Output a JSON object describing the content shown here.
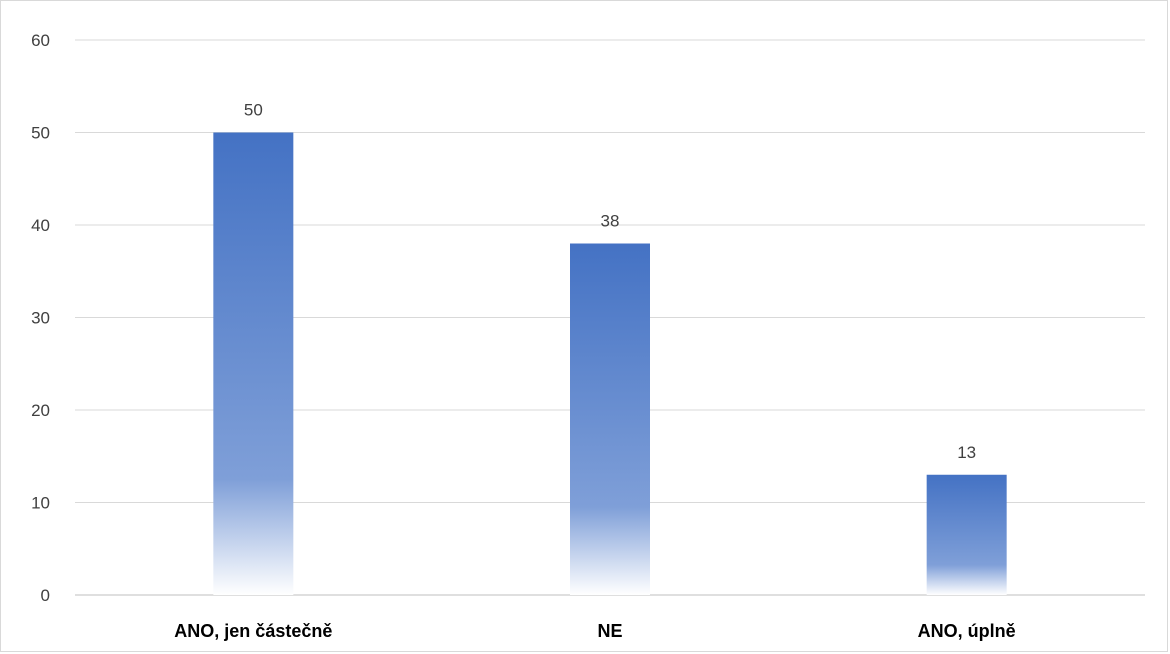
{
  "chart_data": {
    "type": "bar",
    "title": "",
    "xlabel": "",
    "ylabel": "",
    "categories": [
      "ANO, jen částečně",
      "NE",
      "ANO, úplně"
    ],
    "values": [
      50,
      38,
      13
    ],
    "ylim": [
      0,
      60
    ],
    "yticks": [
      0,
      10,
      20,
      30,
      40,
      50,
      60
    ],
    "grid": true,
    "legend": "none",
    "data_labels": true,
    "colors": {
      "bar_top": "#4472c4",
      "bar_bottom": "#ffffff",
      "grid": "#d9d9d9",
      "axis": "#bfbfbf",
      "text": "#404040"
    }
  }
}
